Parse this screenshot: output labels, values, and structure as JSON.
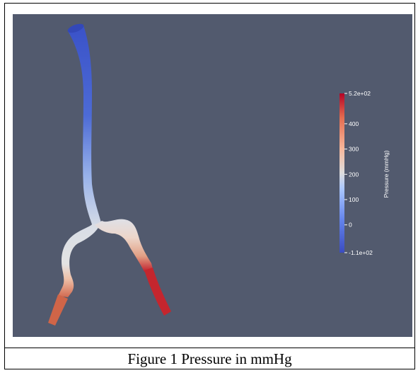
{
  "figure": {
    "caption": "Figure 1 Pressure in mmHg"
  },
  "colorbar": {
    "title": "Pressure (mmHg)",
    "range": [
      -110,
      520
    ],
    "ticks": [
      {
        "label": "5.2e+02",
        "value": 520
      },
      {
        "label": "400",
        "value": 400
      },
      {
        "label": "300",
        "value": 300
      },
      {
        "label": "200",
        "value": 200
      },
      {
        "label": "100",
        "value": 100
      },
      {
        "label": "0",
        "value": 0
      },
      {
        "label": "-1.1e+02",
        "value": -110
      }
    ],
    "colors": {
      "low": "#3b4cc0",
      "mid": "#dddddd",
      "high": "#b40426"
    }
  },
  "colors": {
    "background": "#525a6e"
  }
}
